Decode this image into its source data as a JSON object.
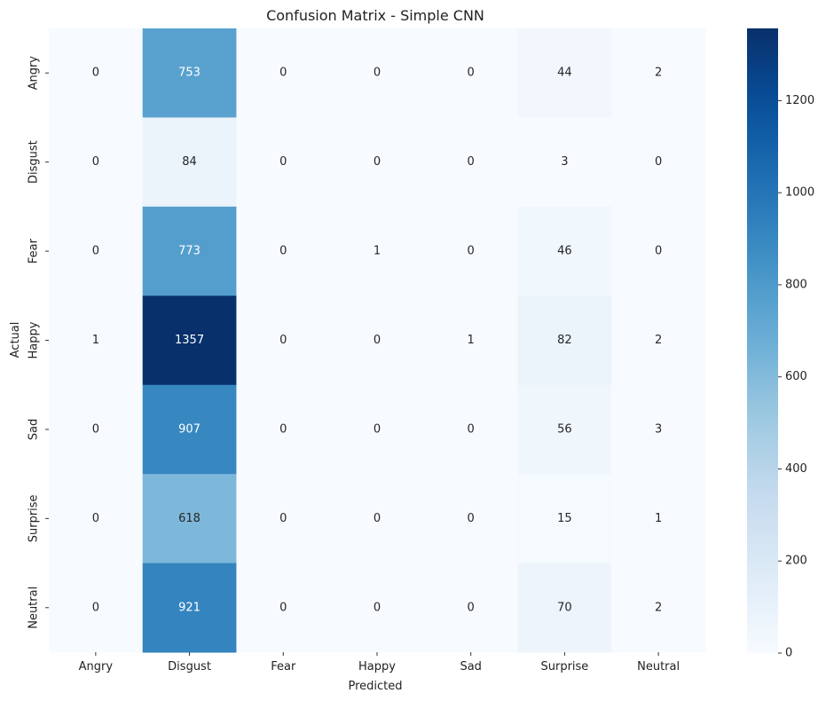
{
  "chart_data": {
    "type": "heatmap",
    "title": "Confusion Matrix - Simple CNN",
    "xlabel": "Predicted",
    "ylabel": "Actual",
    "x_categories": [
      "Angry",
      "Disgust",
      "Fear",
      "Happy",
      "Sad",
      "Surprise",
      "Neutral"
    ],
    "y_categories": [
      "Angry",
      "Disgust",
      "Fear",
      "Happy",
      "Sad",
      "Surprise",
      "Neutral"
    ],
    "values": [
      [
        0,
        753,
        0,
        0,
        0,
        44,
        2
      ],
      [
        0,
        84,
        0,
        0,
        0,
        3,
        0
      ],
      [
        0,
        773,
        0,
        1,
        0,
        46,
        0
      ],
      [
        1,
        1357,
        0,
        0,
        1,
        82,
        2
      ],
      [
        0,
        907,
        0,
        0,
        0,
        56,
        3
      ],
      [
        0,
        618,
        0,
        0,
        0,
        15,
        1
      ],
      [
        0,
        921,
        0,
        0,
        0,
        70,
        2
      ]
    ],
    "colormap": "Blues",
    "colorbar": {
      "range": [
        0,
        1357
      ],
      "ticks": [
        0,
        200,
        400,
        600,
        800,
        1000,
        1200
      ]
    },
    "grid": false
  }
}
